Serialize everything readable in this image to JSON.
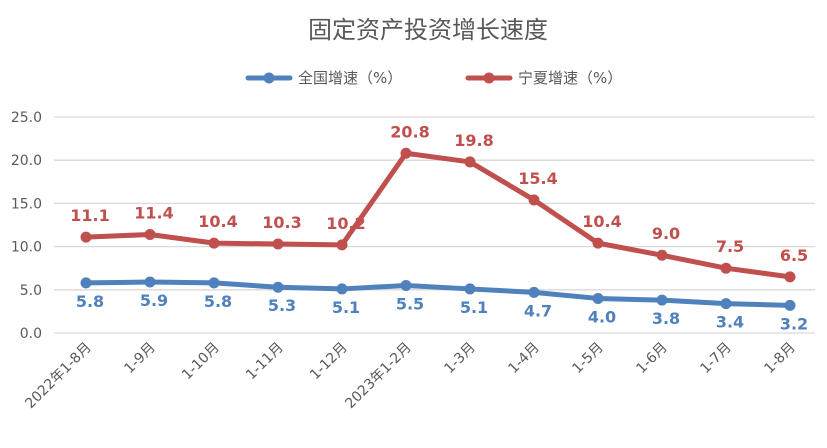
{
  "chart_data": {
    "type": "line",
    "title": "固定资产投资增长速度",
    "categories": [
      "2022年1-8月",
      "1-9月",
      "1-10月",
      "1-11月",
      "1-12月",
      "2023年1-2月",
      "1-3月",
      "1-4月",
      "1-5月",
      "1-6月",
      "1-7月",
      "1-8月"
    ],
    "series": [
      {
        "name": "全国增速（%）",
        "color": "#4f81bd",
        "label_position": "below",
        "values": [
          5.8,
          5.9,
          5.8,
          5.3,
          5.1,
          5.5,
          5.1,
          4.7,
          4.0,
          3.8,
          3.4,
          3.2
        ]
      },
      {
        "name": "宁夏增速（%）",
        "color": "#c0504d",
        "label_position": "above",
        "values": [
          11.1,
          11.4,
          10.4,
          10.3,
          10.2,
          20.8,
          19.8,
          15.4,
          10.4,
          9.0,
          7.5,
          6.5
        ]
      }
    ],
    "yticks": [
      "0.0",
      "5.0",
      "10.0",
      "15.0",
      "20.0",
      "25.0"
    ],
    "ylim": [
      0,
      25
    ],
    "xlabel": "",
    "ylabel": "",
    "grid": true,
    "legend": "top-center"
  }
}
